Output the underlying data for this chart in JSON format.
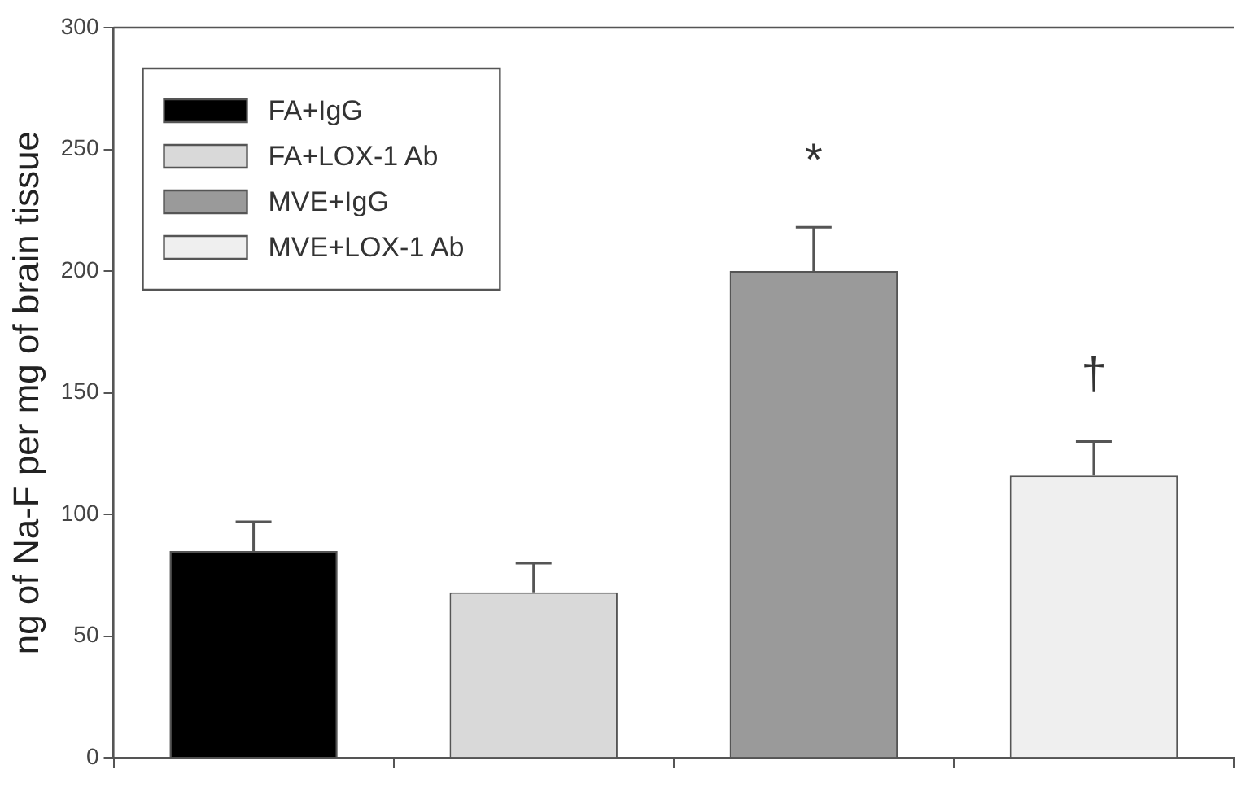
{
  "chart_data": {
    "type": "bar",
    "ylabel": "ng of Na-F per mg of brain tissue",
    "categories": [
      null,
      null,
      null,
      null
    ],
    "series": [
      {
        "name": "FA+IgG",
        "color": "#000000",
        "values": [
          85,
          null,
          null,
          null
        ],
        "errors": [
          [
            85,
            97
          ],
          null,
          null,
          null
        ]
      },
      {
        "name": "FA+LOX-1 Ab",
        "color": "#d9d9d9",
        "values": [
          null,
          68,
          null,
          null
        ],
        "errors": [
          null,
          [
            68,
            80
          ],
          null,
          null
        ]
      },
      {
        "name": "MVE+IgG",
        "color": "#9a9a9a",
        "values": [
          null,
          null,
          200,
          null
        ],
        "errors": [
          null,
          null,
          [
            200,
            218
          ],
          null
        ]
      },
      {
        "name": "MVE+LOX-1 Ab",
        "color": "#efefef",
        "values": [
          null,
          null,
          null,
          116
        ],
        "errors": [
          null,
          null,
          null,
          [
            116,
            130
          ]
        ]
      }
    ],
    "ylim": [
      0,
      300
    ],
    "yticks": [
      0,
      50,
      100,
      150,
      200,
      250,
      300
    ],
    "grid": false,
    "legend": "top left",
    "annotations": [
      "*",
      "†"
    ]
  }
}
